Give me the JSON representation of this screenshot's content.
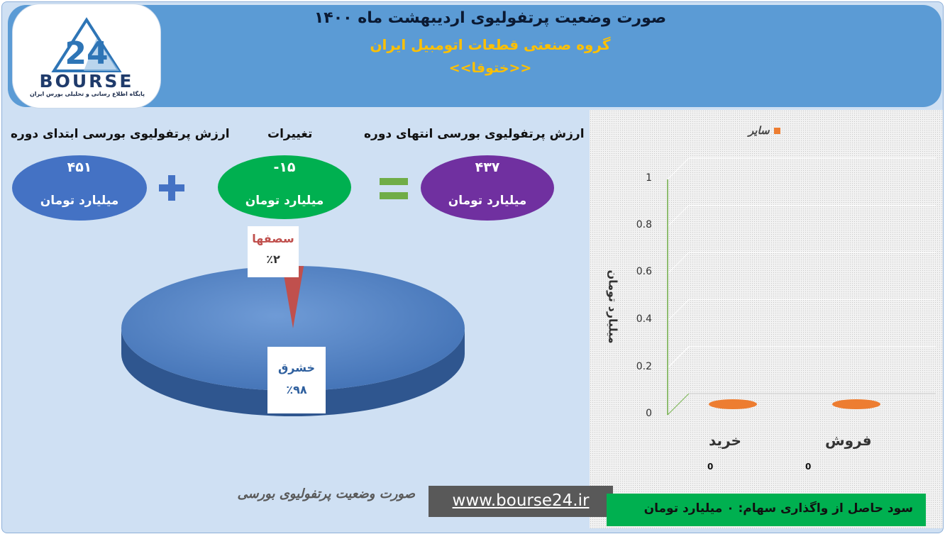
{
  "header": {
    "title": "صورت وضعیت پرتفولیوی اردیبهشت ماه ۱۴۰۰",
    "subtitle": "گروه صنعتی قطعات اتومبیل ایران",
    "ticker": "<<ختوقا>>"
  },
  "logo": {
    "word": "BOURSE",
    "number": "24",
    "tagline": "پایگاه اطلاع رسانی و تحلیلی بورس ایران"
  },
  "summary": {
    "start_label": "ارزش پرتفولیوی بورسی ابتدای دوره",
    "start_value": "۴۵۱",
    "change_label": "تغییرات",
    "change_value": "-۱۵",
    "end_label": "ارزش پرتفولیوی بورسی انتهای دوره",
    "end_value": "۴۳۷",
    "unit": "میلیارد تومان",
    "plus_symbol": "+",
    "equals_symbol": "=",
    "colors": {
      "start": "#4472c4",
      "change": "#00b050",
      "end": "#7030a0"
    }
  },
  "chart_data": [
    {
      "type": "pie",
      "slices": [
        {
          "label": "خشرق",
          "value": 98,
          "display": "٪۹۸",
          "color": "#4f81bd"
        },
        {
          "label": "سصفها",
          "value": 2,
          "display": "٪۲",
          "color": "#c0504d"
        }
      ]
    },
    {
      "type": "bar",
      "categories": [
        "خرید",
        "فروش"
      ],
      "series": [
        {
          "name": "سایر",
          "values": [
            0,
            0
          ],
          "color": "#ed7d31"
        }
      ],
      "ylabel": "میلیارد تومان",
      "ylim": [
        0,
        1
      ],
      "yticks": [
        "0",
        "0.2",
        "0.4",
        "0.6",
        "0.8",
        "1"
      ],
      "legend": "top",
      "grid": true,
      "value_labels": [
        "0",
        "0"
      ]
    }
  ],
  "footer": {
    "caption": "صورت وضعیت پرتفولیوی بورسی",
    "url": "www.bourse24.ir",
    "profit_text": "سود حاصل از واگذاری سهام: ۰ میلیارد تومان"
  }
}
